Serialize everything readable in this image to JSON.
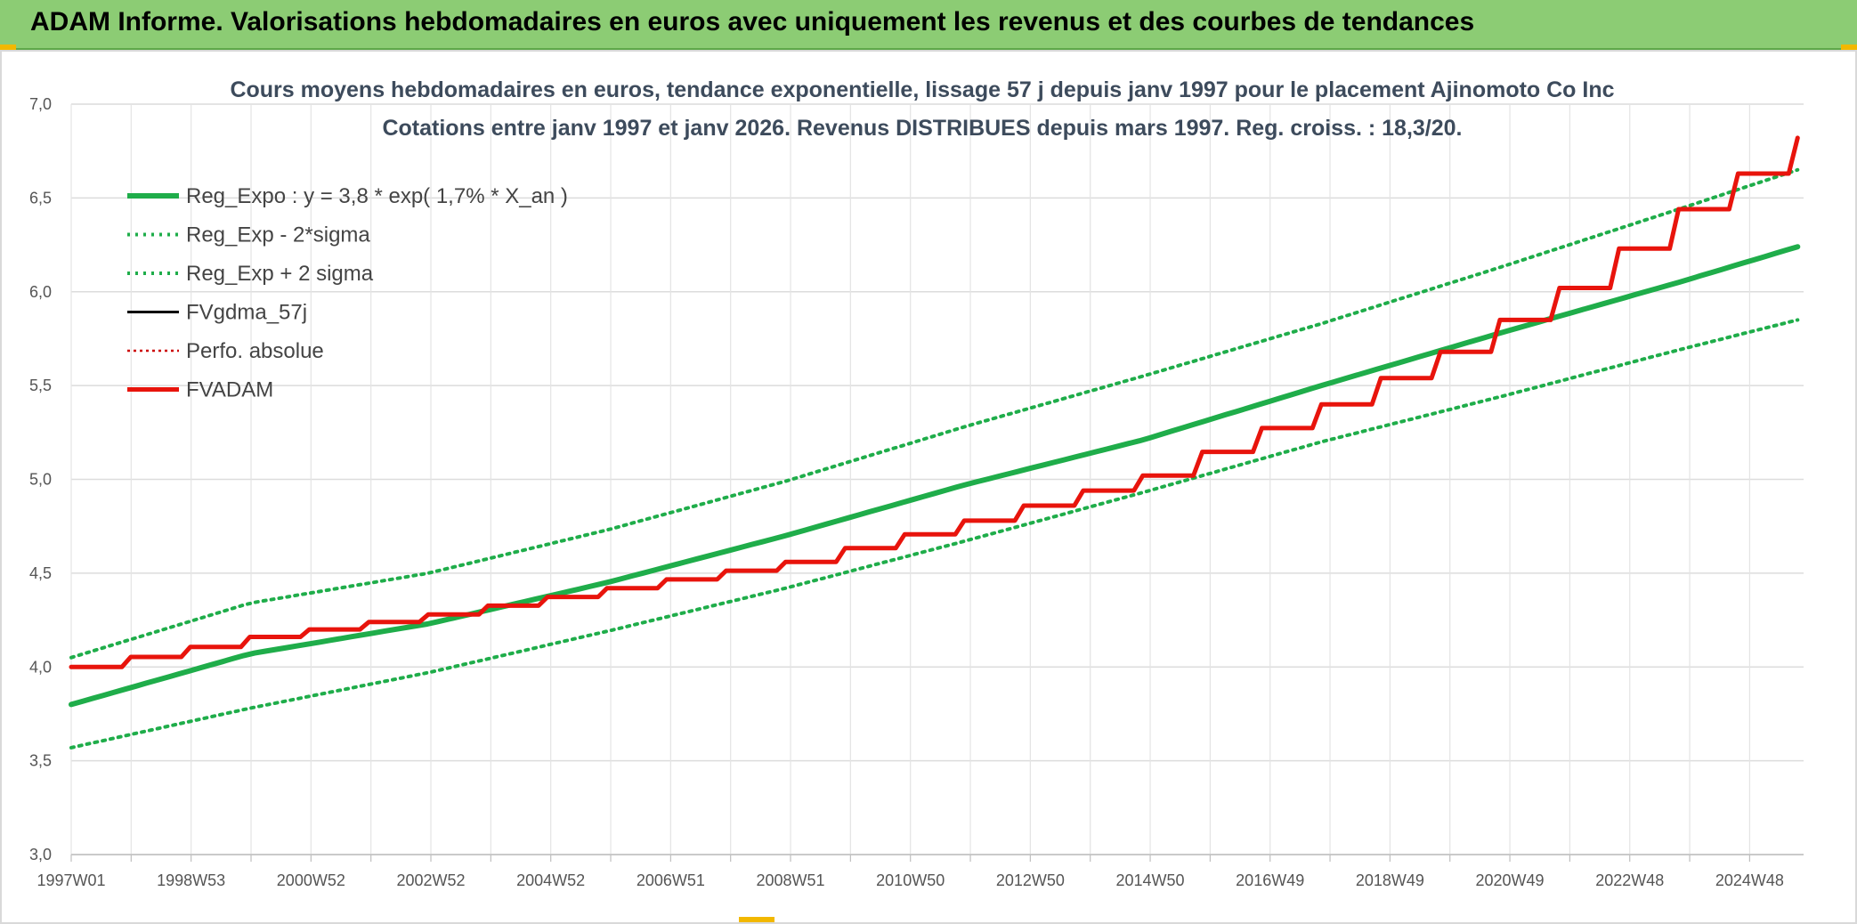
{
  "banner": {
    "title": "ADAM Informe. Valorisations hebdomadaires en euros avec uniquement les revenus et des courbes de tendances"
  },
  "chart_data": {
    "type": "line",
    "title": "Cours moyens hebdomadaires en euros, tendance exponentielle, lissage 57 j depuis janv 1997 pour le placement Ajinomoto Co Inc",
    "subtitle": "Cotations entre janv 1997 et janv 2026. Revenus DISTRIBUES depuis mars 1997. Reg. croiss. : 18,3/20.",
    "xlabel": "",
    "ylabel": "",
    "ylim": [
      3.0,
      7.0
    ],
    "yticks": [
      "3,0",
      "3,5",
      "4,0",
      "4,5",
      "5,0",
      "5,5",
      "6,0",
      "6,5",
      "7,0"
    ],
    "xlim": [
      1997.0,
      2026.1
    ],
    "x_tick_labels": [
      "1997W01",
      "1998W53",
      "2000W52",
      "2002W52",
      "2004W52",
      "2006W51",
      "2008W51",
      "2010W50",
      "2012W50",
      "2014W50",
      "2016W49",
      "2018W49",
      "2020W49",
      "2022W48",
      "2024W48"
    ],
    "grid": true,
    "legend_position": "top-left",
    "series": [
      {
        "name": "Reg_Expo : y = 3,8 * exp( 1,7% *  X_an )",
        "color": "#1fad4a",
        "style": "solid-thick",
        "x": [
          1997,
          2000,
          2003,
          2006,
          2009,
          2012,
          2015,
          2018,
          2021,
          2024,
          2026
        ],
        "values": [
          3.8,
          4.07,
          4.23,
          4.45,
          4.7,
          4.97,
          5.21,
          5.5,
          5.78,
          6.05,
          6.24
        ]
      },
      {
        "name": "Reg_Exp - 2*sigma",
        "color": "#1fad4a",
        "style": "dotted",
        "x": [
          1997,
          2000,
          2003,
          2006,
          2009,
          2012,
          2015,
          2018,
          2021,
          2024,
          2026
        ],
        "values": [
          3.57,
          3.78,
          3.97,
          4.19,
          4.42,
          4.67,
          4.93,
          5.2,
          5.44,
          5.69,
          5.85
        ]
      },
      {
        "name": "Reg_Exp + 2 sigma",
        "color": "#1fad4a",
        "style": "dotted",
        "x": [
          1997,
          2000,
          2003,
          2006,
          2009,
          2012,
          2015,
          2018,
          2021,
          2024,
          2026
        ],
        "values": [
          4.05,
          4.34,
          4.5,
          4.73,
          4.99,
          5.28,
          5.55,
          5.83,
          6.13,
          6.44,
          6.65
        ]
      },
      {
        "name": "FVgdma_57j",
        "color": "#000000",
        "style": "solid",
        "x": [
          1997,
          2000,
          2003,
          2006,
          2009,
          2012,
          2015,
          2018,
          2020,
          2022,
          2024,
          2026
        ],
        "values": [
          4.0,
          4.16,
          4.28,
          4.42,
          4.56,
          4.78,
          5.02,
          5.4,
          5.68,
          6.02,
          6.44,
          6.82
        ]
      },
      {
        "name": "Perfo. absolue",
        "color": "#cc0000",
        "style": "dotted-thin",
        "x": [
          1997,
          2000,
          2003,
          2006,
          2009,
          2012,
          2015,
          2018,
          2020,
          2022,
          2024,
          2026
        ],
        "values": [
          4.0,
          4.16,
          4.28,
          4.42,
          4.56,
          4.78,
          5.02,
          5.4,
          5.68,
          6.02,
          6.44,
          6.82
        ]
      },
      {
        "name": "FVADAM",
        "color": "#e8140c",
        "style": "step-thick",
        "x": [
          1997,
          2000,
          2003,
          2006,
          2009,
          2012,
          2015,
          2018,
          2020,
          2022,
          2024,
          2026
        ],
        "values": [
          4.0,
          4.16,
          4.28,
          4.42,
          4.56,
          4.78,
          5.02,
          5.4,
          5.68,
          6.02,
          6.44,
          6.82
        ]
      }
    ]
  }
}
